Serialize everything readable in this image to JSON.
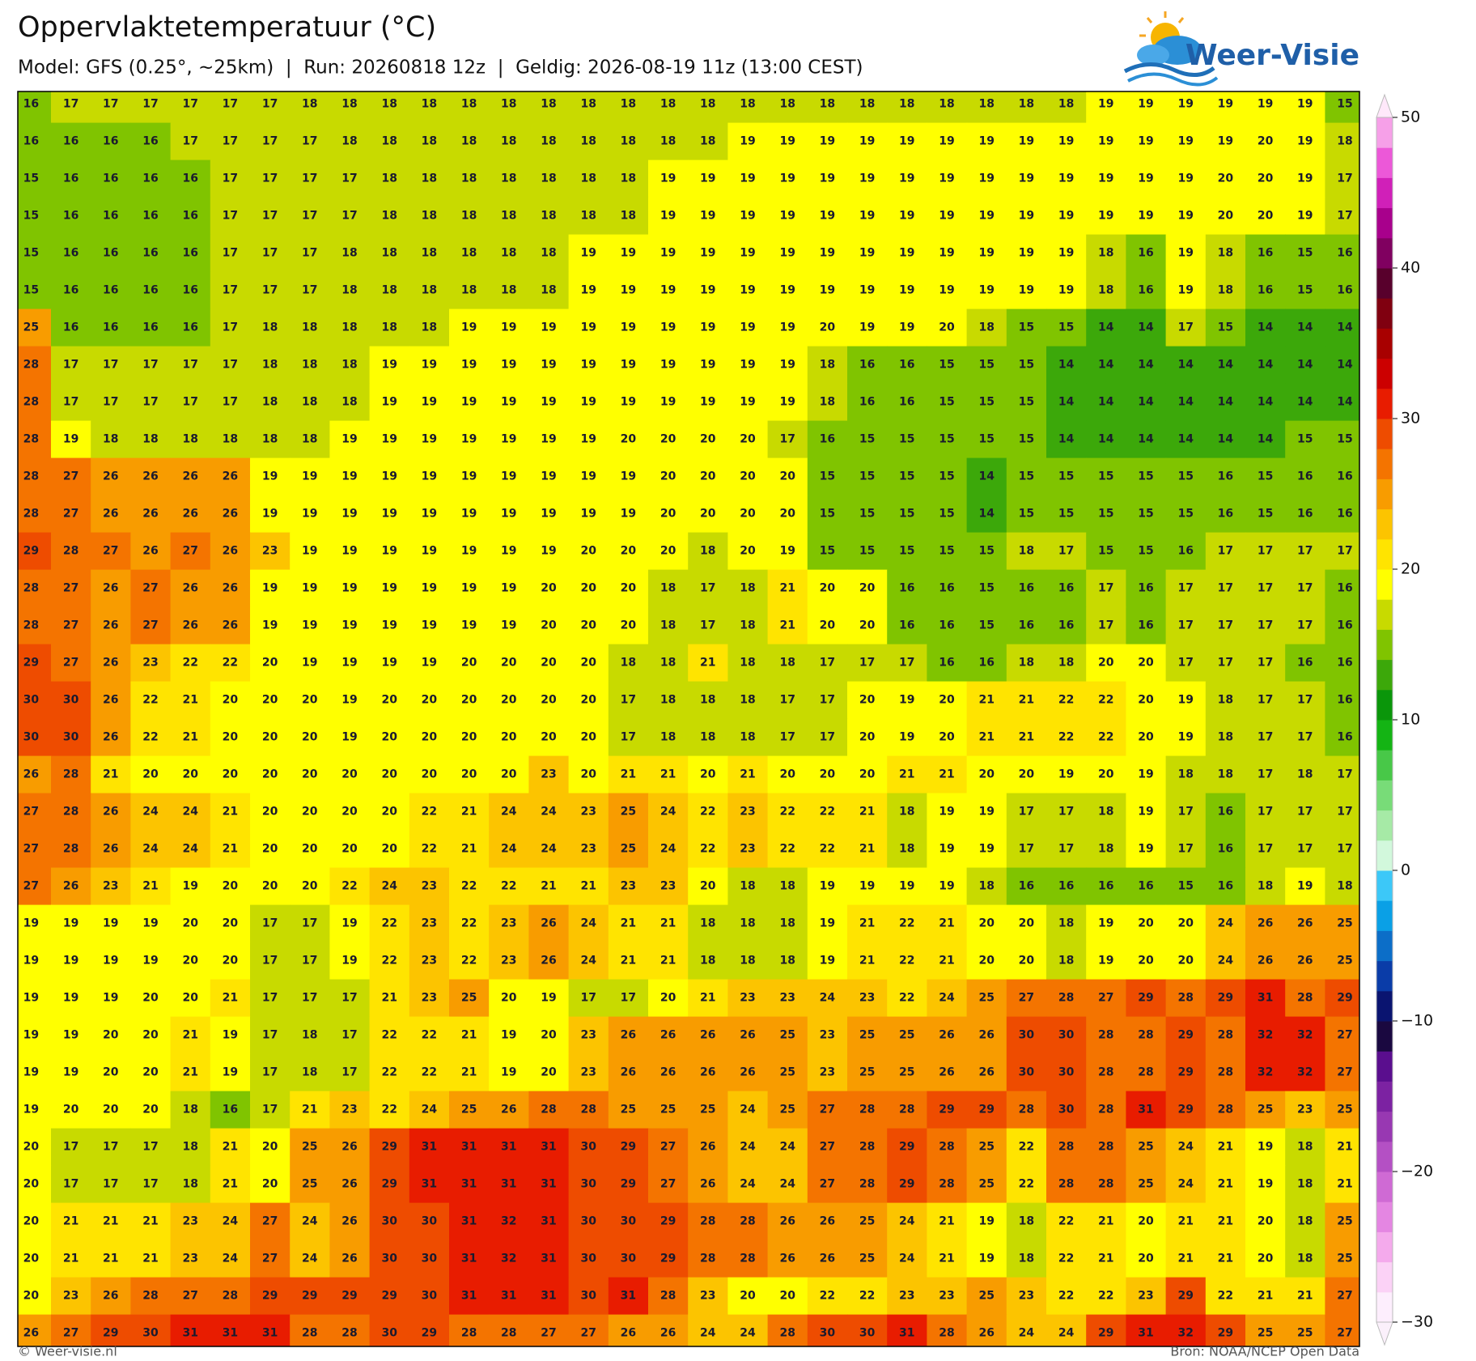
{
  "header": {
    "title": "Oppervlaktetemperatuur (°C)",
    "subtitle": "Model: GFS (0.25°, ~25km)  |  Run: 20260818 12z  |  Geldig: 2026-08-19 11z (13:00 CEST)"
  },
  "logo": "Weer-Visie",
  "grid": {
    "rows": [
      [
        16,
        17,
        17,
        17,
        17,
        17,
        17,
        18,
        18,
        18,
        18,
        18,
        18,
        18,
        18,
        18,
        18,
        18,
        18,
        18,
        18,
        18,
        18,
        18,
        18,
        18,
        18,
        19,
        19,
        19,
        19,
        19,
        19,
        15
      ],
      [
        16,
        16,
        16,
        16,
        17,
        17,
        17,
        17,
        18,
        18,
        18,
        18,
        18,
        18,
        18,
        18,
        18,
        18,
        19,
        19,
        19,
        19,
        19,
        19,
        19,
        19,
        19,
        19,
        19,
        19,
        19,
        20,
        19,
        18
      ],
      [
        15,
        16,
        16,
        16,
        16,
        17,
        17,
        17,
        17,
        18,
        18,
        18,
        18,
        18,
        18,
        18,
        19,
        19,
        19,
        19,
        19,
        19,
        19,
        19,
        19,
        19,
        19,
        19,
        19,
        19,
        20,
        20,
        19,
        17
      ],
      [
        15,
        16,
        16,
        16,
        16,
        17,
        17,
        17,
        17,
        18,
        18,
        18,
        18,
        18,
        18,
        18,
        19,
        19,
        19,
        19,
        19,
        19,
        19,
        19,
        19,
        19,
        19,
        19,
        19,
        19,
        20,
        20,
        19,
        17
      ],
      [
        15,
        16,
        16,
        16,
        16,
        17,
        17,
        17,
        18,
        18,
        18,
        18,
        18,
        18,
        19,
        19,
        19,
        19,
        19,
        19,
        19,
        19,
        19,
        19,
        19,
        19,
        19,
        18,
        16,
        19,
        18,
        16,
        15,
        16
      ],
      [
        15,
        16,
        16,
        16,
        16,
        17,
        17,
        17,
        18,
        18,
        18,
        18,
        18,
        18,
        19,
        19,
        19,
        19,
        19,
        19,
        19,
        19,
        19,
        19,
        19,
        19,
        19,
        18,
        16,
        19,
        18,
        16,
        15,
        16
      ],
      [
        25,
        16,
        16,
        16,
        16,
        17,
        18,
        18,
        18,
        18,
        18,
        19,
        19,
        19,
        19,
        19,
        19,
        19,
        19,
        19,
        20,
        19,
        19,
        20,
        18,
        15,
        15,
        14,
        14,
        17,
        15,
        14,
        14,
        14
      ],
      [
        28,
        17,
        17,
        17,
        17,
        17,
        18,
        18,
        18,
        19,
        19,
        19,
        19,
        19,
        19,
        19,
        19,
        19,
        19,
        19,
        18,
        16,
        16,
        15,
        15,
        15,
        14,
        14,
        14,
        14,
        14,
        14,
        14,
        14
      ],
      [
        28,
        17,
        17,
        17,
        17,
        17,
        18,
        18,
        18,
        19,
        19,
        19,
        19,
        19,
        19,
        19,
        19,
        19,
        19,
        19,
        18,
        16,
        16,
        15,
        15,
        15,
        14,
        14,
        14,
        14,
        14,
        14,
        14,
        14
      ],
      [
        28,
        19,
        18,
        18,
        18,
        18,
        18,
        18,
        19,
        19,
        19,
        19,
        19,
        19,
        19,
        20,
        20,
        20,
        20,
        17,
        16,
        15,
        15,
        15,
        15,
        15,
        14,
        14,
        14,
        14,
        14,
        14,
        15,
        15
      ],
      [
        28,
        27,
        26,
        26,
        26,
        26,
        19,
        19,
        19,
        19,
        19,
        19,
        19,
        19,
        19,
        19,
        20,
        20,
        20,
        20,
        15,
        15,
        15,
        15,
        14,
        15,
        15,
        15,
        15,
        15,
        16,
        15,
        16,
        16
      ],
      [
        28,
        27,
        26,
        26,
        26,
        26,
        19,
        19,
        19,
        19,
        19,
        19,
        19,
        19,
        19,
        19,
        20,
        20,
        20,
        20,
        15,
        15,
        15,
        15,
        14,
        15,
        15,
        15,
        15,
        15,
        16,
        15,
        16,
        16
      ],
      [
        29,
        28,
        27,
        26,
        27,
        26,
        23,
        19,
        19,
        19,
        19,
        19,
        19,
        19,
        20,
        20,
        20,
        18,
        20,
        19,
        15,
        15,
        15,
        15,
        15,
        18,
        17,
        15,
        15,
        16,
        17,
        17,
        17,
        17
      ],
      [
        28,
        27,
        26,
        27,
        26,
        26,
        19,
        19,
        19,
        19,
        19,
        19,
        19,
        20,
        20,
        20,
        18,
        17,
        18,
        21,
        20,
        20,
        16,
        16,
        15,
        16,
        16,
        17,
        16,
        17,
        17,
        17,
        17,
        16
      ],
      [
        28,
        27,
        26,
        27,
        26,
        26,
        19,
        19,
        19,
        19,
        19,
        19,
        19,
        20,
        20,
        20,
        18,
        17,
        18,
        21,
        20,
        20,
        16,
        16,
        15,
        16,
        16,
        17,
        16,
        17,
        17,
        17,
        17,
        16
      ],
      [
        29,
        27,
        26,
        23,
        22,
        22,
        20,
        19,
        19,
        19,
        19,
        20,
        20,
        20,
        20,
        18,
        18,
        21,
        18,
        18,
        17,
        17,
        17,
        16,
        16,
        18,
        18,
        20,
        20,
        17,
        17,
        17,
        16,
        16
      ],
      [
        30,
        30,
        26,
        22,
        21,
        20,
        20,
        20,
        19,
        20,
        20,
        20,
        20,
        20,
        20,
        17,
        18,
        18,
        18,
        17,
        17,
        20,
        19,
        20,
        21,
        21,
        22,
        22,
        20,
        19,
        18,
        17,
        17,
        16
      ],
      [
        30,
        30,
        26,
        22,
        21,
        20,
        20,
        20,
        19,
        20,
        20,
        20,
        20,
        20,
        20,
        17,
        18,
        18,
        18,
        17,
        17,
        20,
        19,
        20,
        21,
        21,
        22,
        22,
        20,
        19,
        18,
        17,
        17,
        16
      ],
      [
        26,
        28,
        21,
        20,
        20,
        20,
        20,
        20,
        20,
        20,
        20,
        20,
        20,
        23,
        20,
        21,
        21,
        20,
        21,
        20,
        20,
        20,
        21,
        21,
        20,
        20,
        19,
        20,
        19,
        18,
        18,
        17,
        18,
        17
      ],
      [
        27,
        28,
        26,
        24,
        24,
        21,
        20,
        20,
        20,
        20,
        22,
        21,
        24,
        24,
        23,
        25,
        24,
        22,
        23,
        22,
        22,
        21,
        18,
        19,
        19,
        17,
        17,
        18,
        19,
        17,
        16,
        17,
        17,
        17
      ],
      [
        27,
        28,
        26,
        24,
        24,
        21,
        20,
        20,
        20,
        20,
        22,
        21,
        24,
        24,
        23,
        25,
        24,
        22,
        23,
        22,
        22,
        21,
        18,
        19,
        19,
        17,
        17,
        18,
        19,
        17,
        16,
        17,
        17,
        17
      ],
      [
        27,
        26,
        23,
        21,
        19,
        20,
        20,
        20,
        22,
        24,
        23,
        22,
        22,
        21,
        21,
        23,
        23,
        20,
        18,
        18,
        19,
        19,
        19,
        19,
        18,
        16,
        16,
        16,
        16,
        15,
        16,
        18,
        19,
        18
      ],
      [
        19,
        19,
        19,
        19,
        20,
        20,
        17,
        17,
        19,
        22,
        23,
        22,
        23,
        26,
        24,
        21,
        21,
        18,
        18,
        18,
        19,
        21,
        22,
        21,
        20,
        20,
        18,
        19,
        20,
        20,
        24,
        26,
        26,
        25
      ],
      [
        19,
        19,
        19,
        19,
        20,
        20,
        17,
        17,
        19,
        22,
        23,
        22,
        23,
        26,
        24,
        21,
        21,
        18,
        18,
        18,
        19,
        21,
        22,
        21,
        20,
        20,
        18,
        19,
        20,
        20,
        24,
        26,
        26,
        25
      ],
      [
        19,
        19,
        19,
        20,
        20,
        21,
        17,
        17,
        17,
        21,
        23,
        25,
        20,
        19,
        17,
        17,
        20,
        21,
        23,
        23,
        24,
        23,
        22,
        24,
        25,
        27,
        28,
        27,
        29,
        28,
        29,
        31,
        28,
        29
      ],
      [
        19,
        19,
        20,
        20,
        21,
        19,
        17,
        18,
        17,
        22,
        22,
        21,
        19,
        20,
        23,
        26,
        26,
        26,
        26,
        25,
        23,
        25,
        25,
        26,
        26,
        30,
        30,
        28,
        28,
        29,
        28,
        32,
        32,
        27
      ],
      [
        19,
        19,
        20,
        20,
        21,
        19,
        17,
        18,
        17,
        22,
        22,
        21,
        19,
        20,
        23,
        26,
        26,
        26,
        26,
        25,
        23,
        25,
        25,
        26,
        26,
        30,
        30,
        28,
        28,
        29,
        28,
        32,
        32,
        27
      ],
      [
        19,
        20,
        20,
        20,
        18,
        16,
        17,
        21,
        23,
        22,
        24,
        25,
        26,
        28,
        28,
        25,
        25,
        25,
        24,
        25,
        27,
        28,
        28,
        29,
        29,
        28,
        30,
        28,
        31,
        29,
        28,
        25,
        23,
        25
      ],
      [
        20,
        17,
        17,
        17,
        18,
        21,
        20,
        25,
        26,
        29,
        31,
        31,
        31,
        31,
        30,
        29,
        27,
        26,
        24,
        24,
        27,
        28,
        29,
        28,
        25,
        22,
        28,
        28,
        25,
        24,
        21,
        19,
        18,
        21
      ],
      [
        20,
        17,
        17,
        17,
        18,
        21,
        20,
        25,
        26,
        29,
        31,
        31,
        31,
        31,
        30,
        29,
        27,
        26,
        24,
        24,
        27,
        28,
        29,
        28,
        25,
        22,
        28,
        28,
        25,
        24,
        21,
        19,
        18,
        21
      ],
      [
        20,
        21,
        21,
        21,
        23,
        24,
        27,
        24,
        26,
        30,
        30,
        31,
        32,
        31,
        30,
        30,
        29,
        28,
        28,
        26,
        26,
        25,
        24,
        21,
        19,
        18,
        22,
        21,
        20,
        21,
        21,
        20,
        18,
        25
      ],
      [
        20,
        21,
        21,
        21,
        23,
        24,
        27,
        24,
        26,
        30,
        30,
        31,
        32,
        31,
        30,
        30,
        29,
        28,
        28,
        26,
        26,
        25,
        24,
        21,
        19,
        18,
        22,
        21,
        20,
        21,
        21,
        20,
        18,
        25
      ],
      [
        20,
        23,
        26,
        28,
        27,
        28,
        29,
        29,
        29,
        29,
        30,
        31,
        31,
        31,
        30,
        31,
        28,
        23,
        20,
        20,
        22,
        22,
        23,
        23,
        25,
        23,
        22,
        22,
        23,
        29,
        22,
        21,
        21,
        27
      ],
      [
        26,
        27,
        29,
        30,
        31,
        31,
        31,
        28,
        28,
        30,
        29,
        28,
        28,
        27,
        27,
        26,
        26,
        24,
        24,
        28,
        30,
        30,
        31,
        28,
        26,
        24,
        24,
        29,
        31,
        32,
        29,
        25,
        25,
        27
      ]
    ]
  },
  "colorbar": {
    "lim": [
      -30,
      50
    ],
    "ticks": [
      50,
      40,
      30,
      20,
      10,
      0,
      {
        "value": -10,
        "label": "−10"
      },
      {
        "value": -20,
        "label": "−20"
      },
      {
        "value": -30,
        "label": "−30"
      }
    ],
    "colors": [
      "#fdeefd",
      "#fbd2f6",
      "#f4aaec",
      "#e486e2",
      "#cf6ad4",
      "#b450c4",
      "#9838b2",
      "#7c22a2",
      "#5a0e8e",
      "#1a0840",
      "#0a1470",
      "#0a3ca8",
      "#0c6ec8",
      "#0aa0e6",
      "#3cc8f8",
      "#d2f8dc",
      "#a6eaa6",
      "#78dc78",
      "#48c848",
      "#14b414",
      "#0a960a",
      "#3ca80a",
      "#80c400",
      "#c8da00",
      "#ffff00",
      "#ffe400",
      "#fcc400",
      "#f89c00",
      "#f47400",
      "#ee4c00",
      "#e81c00",
      "#cc0000",
      "#a80000",
      "#800010",
      "#58002c",
      "#800060",
      "#a8008c",
      "#d020b8",
      "#ec58d8",
      "#f6a0e8"
    ],
    "under_color": "#fbf0fb",
    "over_color": "#ffe8fa"
  },
  "footer": {
    "left": "© Weer-visie.nl",
    "right": "Bron: NOAA/NCEP Open Data"
  }
}
